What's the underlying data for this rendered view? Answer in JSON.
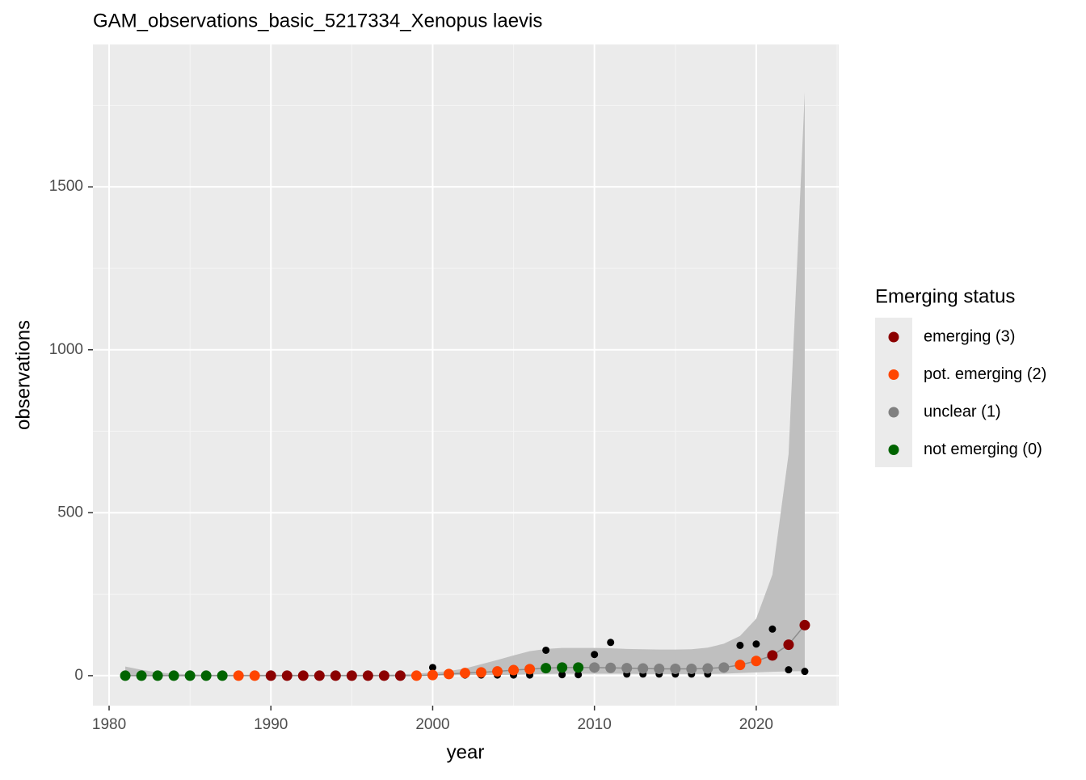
{
  "chart_data": {
    "type": "scatter",
    "title": "GAM_observations_basic_5217334_Xenopus laevis",
    "x_label": "year",
    "y_label": "observations",
    "xlim": [
      1979,
      2025.1
    ],
    "ylim": [
      -92,
      1937
    ],
    "xticks": [
      1980,
      1990,
      2000,
      2010,
      2020
    ],
    "yticks": [
      0,
      500,
      1000,
      1500
    ],
    "grid": true,
    "legend_title": "Emerging status",
    "legend_position": "right",
    "ribbon": {
      "color": "#bfbfbf",
      "x": [
        1981,
        1982,
        1983,
        1984,
        1985,
        1986,
        1987,
        1988,
        1989,
        1990,
        1991,
        1992,
        1993,
        1994,
        1995,
        1996,
        1997,
        1998,
        1999,
        2000,
        2001,
        2002,
        2003,
        2004,
        2005,
        2006,
        2007,
        2008,
        2009,
        2010,
        2011,
        2012,
        2013,
        2014,
        2015,
        2016,
        2017,
        2018,
        2019,
        2020,
        2021,
        2022,
        2023
      ],
      "lower": [
        0,
        0,
        0,
        0,
        0,
        0,
        0,
        0,
        0,
        0,
        0,
        0,
        0,
        0,
        0,
        0,
        0,
        0,
        0,
        0,
        1,
        2,
        2,
        2,
        3,
        4,
        5,
        6,
        6,
        6,
        6,
        6,
        5,
        5,
        5,
        5,
        5,
        6,
        8,
        10,
        12,
        13,
        14
      ],
      "upper": [
        28,
        18,
        10,
        6,
        4,
        3,
        3,
        3,
        3,
        3,
        3,
        3,
        3,
        3,
        3,
        3,
        3,
        4,
        6,
        10,
        14,
        22,
        35,
        48,
        62,
        75,
        82,
        85,
        85,
        85,
        84,
        82,
        81,
        80,
        80,
        81,
        86,
        98,
        122,
        175,
        310,
        680,
        1790
      ]
    },
    "line_color": "#8c8c8c",
    "observed": {
      "color": "#000000",
      "x": [
        1981,
        1982,
        1983,
        1984,
        1985,
        1986,
        1987,
        1988,
        1989,
        1990,
        1991,
        1992,
        1993,
        1994,
        1995,
        1996,
        1997,
        1998,
        1999,
        2000,
        2001,
        2002,
        2003,
        2004,
        2005,
        2006,
        2007,
        2008,
        2009,
        2010,
        2011,
        2012,
        2013,
        2014,
        2015,
        2016,
        2017,
        2018,
        2019,
        2020,
        2021,
        2022,
        2023
      ],
      "values": [
        0,
        0,
        0,
        0,
        0,
        0,
        0,
        0,
        0,
        0,
        0,
        0,
        0,
        0,
        0,
        0,
        0,
        0,
        0,
        25,
        2,
        2,
        2,
        2,
        2,
        2,
        78,
        3,
        3,
        65,
        102,
        5,
        5,
        5,
        5,
        5,
        5,
        25,
        93,
        97,
        143,
        18,
        13
      ]
    },
    "series": [
      {
        "name": "emerging (3)",
        "color": "#8b0000",
        "x": [
          1990,
          1991,
          1992,
          1993,
          1994,
          1995,
          1996,
          1997,
          1998,
          2021,
          2022,
          2023
        ],
        "values": [
          0,
          0,
          0,
          0,
          0,
          0,
          0,
          0,
          0,
          62,
          95,
          155
        ]
      },
      {
        "name": "pot. emerging (2)",
        "color": "#ff4500",
        "x": [
          1988,
          1989,
          1999,
          2000,
          2001,
          2002,
          2003,
          2004,
          2005,
          2006,
          2019,
          2020
        ],
        "values": [
          0,
          0,
          0,
          2,
          5,
          8,
          10,
          13,
          17,
          20,
          33,
          45
        ]
      },
      {
        "name": "unclear (1)",
        "color": "#808080",
        "x": [
          2010,
          2011,
          2012,
          2013,
          2014,
          2015,
          2016,
          2017,
          2018
        ],
        "values": [
          25,
          24,
          23,
          22,
          21,
          21,
          21,
          22,
          25
        ]
      },
      {
        "name": "not emerging (0)",
        "color": "#006400",
        "x": [
          1981,
          1982,
          1983,
          1984,
          1985,
          1986,
          1987,
          2007,
          2008,
          2009
        ],
        "values": [
          0,
          0,
          0,
          0,
          0,
          0,
          0,
          23,
          25,
          25
        ]
      }
    ]
  }
}
